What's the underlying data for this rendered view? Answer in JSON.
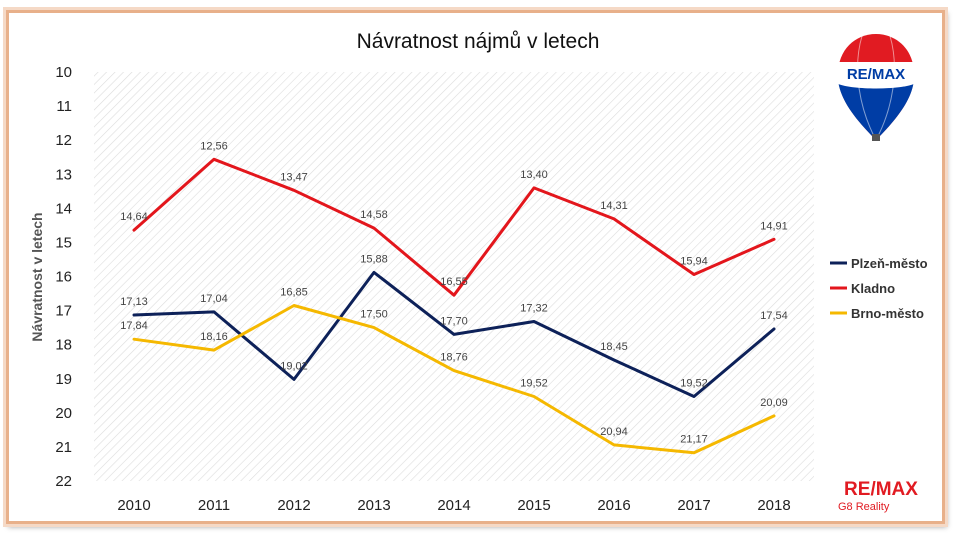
{
  "chart_data": {
    "type": "line",
    "title": "Návratnost nájmů v letech",
    "ylabel": "Návratnost v letech",
    "xlabel": "",
    "categories": [
      "2010",
      "2011",
      "2012",
      "2013",
      "2014",
      "2015",
      "2016",
      "2017",
      "2018"
    ],
    "ylim": [
      10,
      22
    ],
    "y_inverted": true,
    "y_ticks": [
      "10",
      "11",
      "12",
      "13",
      "14",
      "15",
      "16",
      "17",
      "18",
      "19",
      "20",
      "21",
      "22"
    ],
    "grid": "hatched-background",
    "legend_position": "right",
    "series": [
      {
        "name": "Plzeň-město",
        "color": "#0d2159",
        "values": [
          17.13,
          17.04,
          19.02,
          15.88,
          17.7,
          17.32,
          18.45,
          19.52,
          17.54
        ],
        "labels": [
          "17,13",
          "17,04",
          "19,02",
          "15,88",
          "17,70",
          "17,32",
          "18,45",
          "19,52",
          "17,54"
        ]
      },
      {
        "name": "Kladno",
        "color": "#e3161c",
        "values": [
          14.64,
          12.56,
          13.47,
          14.58,
          16.55,
          13.4,
          14.31,
          15.94,
          14.91
        ],
        "labels": [
          "14,64",
          "12,56",
          "13,47",
          "14,58",
          "16,55",
          "13,40",
          "14,31",
          "15,94",
          "14,91"
        ]
      },
      {
        "name": "Brno-město",
        "color": "#f5b800",
        "values": [
          17.84,
          18.16,
          16.85,
          17.5,
          18.76,
          19.52,
          20.94,
          21.17,
          20.09
        ],
        "labels": [
          "17,84",
          "18,16",
          "16,85",
          "17,50",
          "18,76",
          "19,52",
          "20,94",
          "21,17",
          "20,09"
        ]
      }
    ]
  },
  "branding": {
    "balloon_text": "RE/MAX",
    "logo_text": "RE/MAX",
    "logo_subtext": "G8 Reality",
    "colors": {
      "red": "#e11b22",
      "blue": "#003da5"
    }
  }
}
